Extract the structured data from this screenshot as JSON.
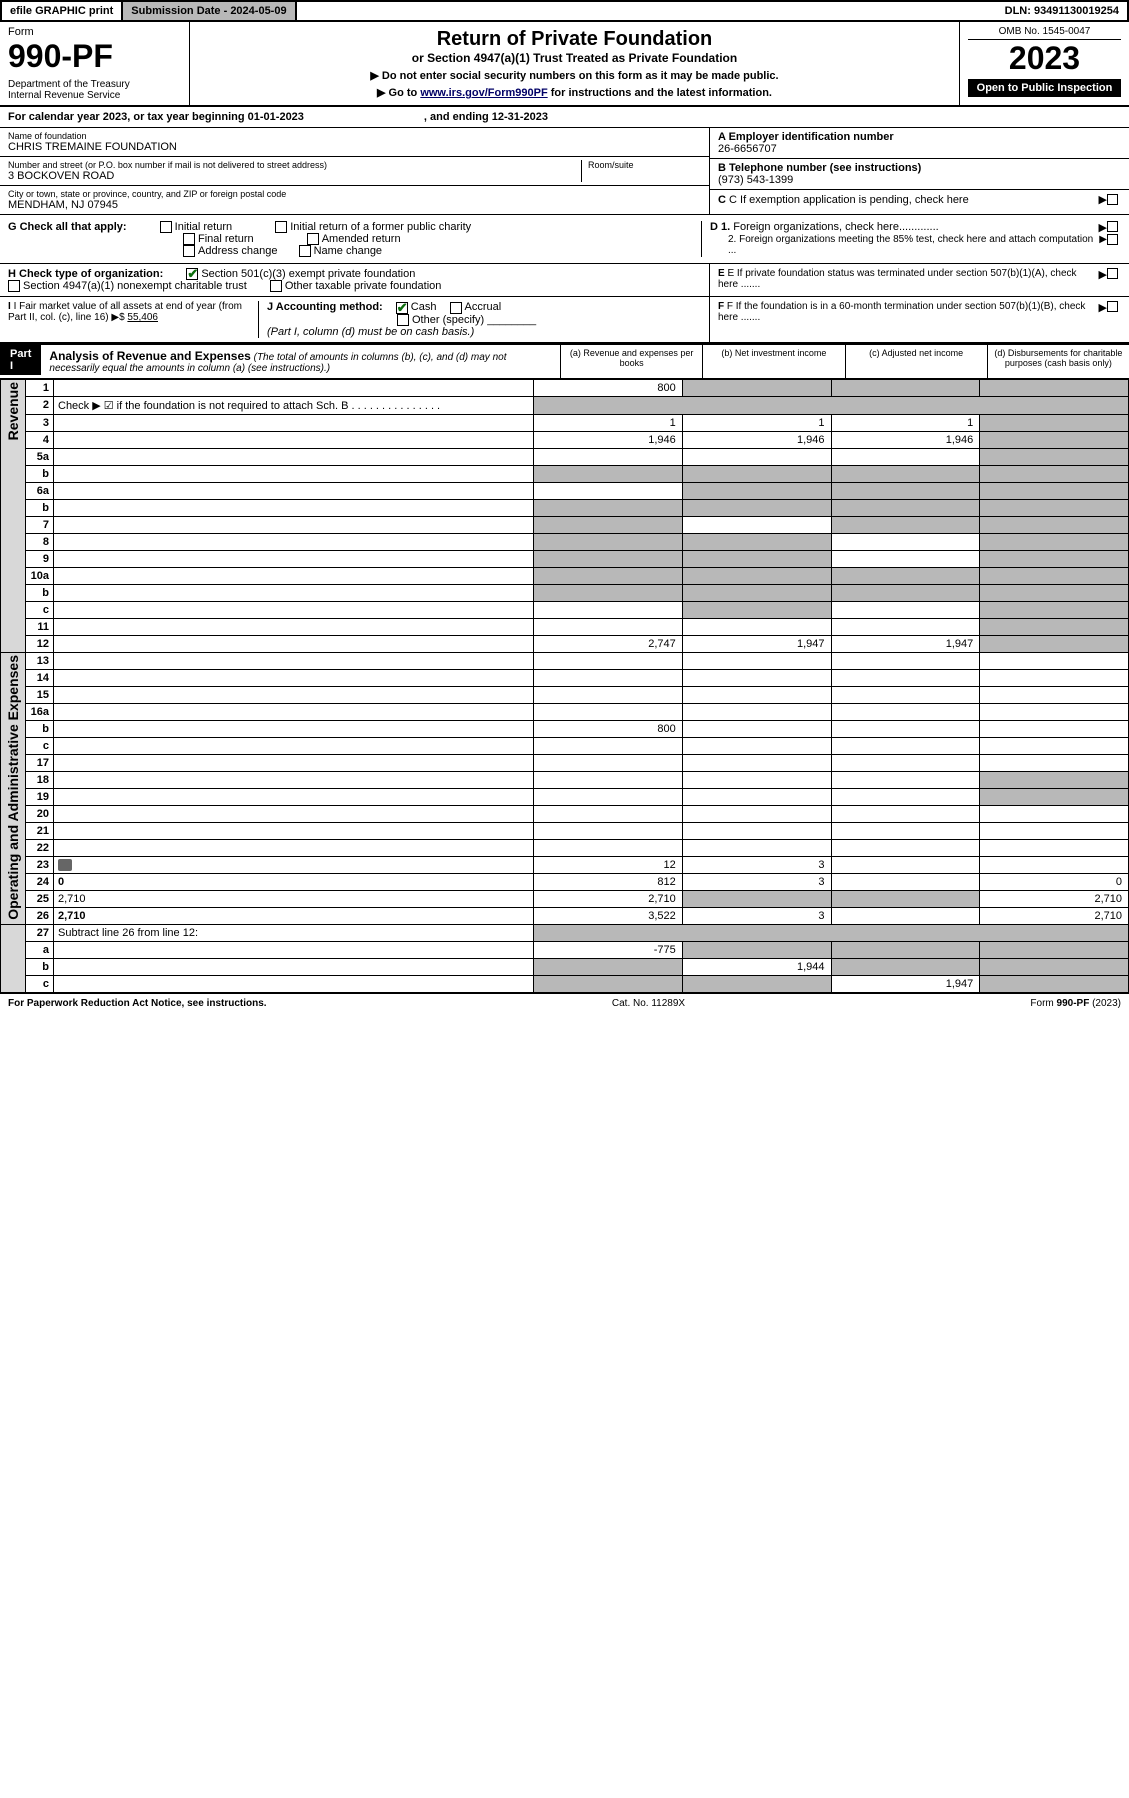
{
  "topbar": {
    "efile": "efile GRAPHIC print",
    "sub_date_label": "Submission Date - 2024-05-09",
    "dln": "DLN: 93491130019254"
  },
  "header": {
    "form_label": "Form",
    "form_num": "990-PF",
    "dept": "Department of the Treasury\nInternal Revenue Service",
    "title": "Return of Private Foundation",
    "subtitle": "or Section 4947(a)(1) Trust Treated as Private Foundation",
    "instr1": "▶ Do not enter social security numbers on this form as it may be made public.",
    "instr2_pre": "▶ Go to ",
    "instr2_link": "www.irs.gov/Form990PF",
    "instr2_post": " for instructions and the latest information.",
    "omb": "OMB No. 1545-0047",
    "year": "2023",
    "open": "Open to Public Inspection"
  },
  "cal_year": {
    "text": "For calendar year 2023, or tax year beginning 01-01-2023",
    "ending": ", and ending 12-31-2023"
  },
  "entity": {
    "name_lbl": "Name of foundation",
    "name": "CHRIS TREMAINE FOUNDATION",
    "addr_lbl": "Number and street (or P.O. box number if mail is not delivered to street address)",
    "addr": "3 BOCKOVEN ROAD",
    "room_lbl": "Room/suite",
    "city_lbl": "City or town, state or province, country, and ZIP or foreign postal code",
    "city": "MENDHAM, NJ  07945",
    "a_lbl": "A Employer identification number",
    "a_val": "26-6656707",
    "b_lbl": "B Telephone number (see instructions)",
    "b_val": "(973) 543-1399",
    "c_lbl": "C If exemption application is pending, check here",
    "d1_lbl": "D 1. Foreign organizations, check here.............",
    "d2_lbl": "2. Foreign organizations meeting the 85% test, check here and attach computation ...",
    "e_lbl": "E  If private foundation status was terminated under section 507(b)(1)(A), check here .......",
    "f_lbl": "F  If the foundation is in a 60-month termination under section 507(b)(1)(B), check here ......."
  },
  "g": {
    "label": "G Check all that apply:",
    "opts": [
      "Initial return",
      "Final return",
      "Address change",
      "Initial return of a former public charity",
      "Amended return",
      "Name change"
    ]
  },
  "h": {
    "label": "H Check type of organization:",
    "o1": "Section 501(c)(3) exempt private foundation",
    "o2": "Section 4947(a)(1) nonexempt charitable trust",
    "o3": "Other taxable private foundation"
  },
  "i": {
    "label": "I Fair market value of all assets at end of year (from Part II, col. (c), line 16)",
    "val": "55,406"
  },
  "j": {
    "label": "J Accounting method:",
    "o1": "Cash",
    "o2": "Accrual",
    "o3": "Other (specify)",
    "note": "(Part I, column (d) must be on cash basis.)"
  },
  "part1": {
    "label": "Part I",
    "title": "Analysis of Revenue and Expenses",
    "note": "(The total of amounts in columns (b), (c), and (d) may not necessarily equal the amounts in column (a) (see instructions).)",
    "col_a": "(a)   Revenue and expenses per books",
    "col_b": "(b)   Net investment income",
    "col_c": "(c)   Adjusted net income",
    "col_d": "(d)  Disbursements for charitable purposes (cash basis only)"
  },
  "side_rev": "Revenue",
  "side_exp": "Operating and Administrative Expenses",
  "rows": [
    {
      "n": "1",
      "d": "",
      "a": "800",
      "b": "",
      "c": "",
      "grey": [
        "b",
        "c",
        "d"
      ]
    },
    {
      "n": "2",
      "d": "Check ▶ ☑ if the foundation is not required to attach Sch. B    .   .   .   .   .   .   .   .   .   .   .   .   .   .   .",
      "empty": true
    },
    {
      "n": "3",
      "d": "",
      "a": "1",
      "b": "1",
      "c": "1",
      "grey": [
        "d"
      ]
    },
    {
      "n": "4",
      "d": "",
      "a": "1,946",
      "b": "1,946",
      "c": "1,946",
      "grey": [
        "d"
      ]
    },
    {
      "n": "5a",
      "d": "",
      "a": "",
      "b": "",
      "c": "",
      "grey": [
        "d"
      ]
    },
    {
      "n": "b",
      "d": "",
      "a": "",
      "b": "",
      "c": "",
      "grey": [
        "a",
        "b",
        "c",
        "d"
      ]
    },
    {
      "n": "6a",
      "d": "",
      "a": "",
      "b": "",
      "c": "",
      "grey": [
        "b",
        "c",
        "d"
      ]
    },
    {
      "n": "b",
      "d": "",
      "a": "",
      "b": "",
      "c": "",
      "grey": [
        "a",
        "b",
        "c",
        "d"
      ]
    },
    {
      "n": "7",
      "d": "",
      "a": "",
      "b": "",
      "c": "",
      "grey": [
        "a",
        "c",
        "d"
      ]
    },
    {
      "n": "8",
      "d": "",
      "a": "",
      "b": "",
      "c": "",
      "grey": [
        "a",
        "b",
        "d"
      ]
    },
    {
      "n": "9",
      "d": "",
      "a": "",
      "b": "",
      "c": "",
      "grey": [
        "a",
        "b",
        "d"
      ]
    },
    {
      "n": "10a",
      "d": "",
      "a": "",
      "b": "",
      "c": "",
      "grey": [
        "a",
        "b",
        "c",
        "d"
      ]
    },
    {
      "n": "b",
      "d": "",
      "a": "",
      "b": "",
      "c": "",
      "grey": [
        "a",
        "b",
        "c",
        "d"
      ]
    },
    {
      "n": "c",
      "d": "",
      "a": "",
      "b": "",
      "c": "",
      "grey": [
        "b",
        "d"
      ]
    },
    {
      "n": "11",
      "d": "",
      "a": "",
      "b": "",
      "c": "",
      "grey": [
        "d"
      ]
    },
    {
      "n": "12",
      "d": "",
      "a": "2,747",
      "b": "1,947",
      "c": "1,947",
      "grey": [
        "d"
      ],
      "bold": true
    }
  ],
  "exp_rows": [
    {
      "n": "13",
      "d": "",
      "a": "",
      "b": "",
      "c": ""
    },
    {
      "n": "14",
      "d": "",
      "a": "",
      "b": "",
      "c": ""
    },
    {
      "n": "15",
      "d": "",
      "a": "",
      "b": "",
      "c": ""
    },
    {
      "n": "16a",
      "d": "",
      "a": "",
      "b": "",
      "c": ""
    },
    {
      "n": "b",
      "d": "",
      "a": "800",
      "b": "",
      "c": ""
    },
    {
      "n": "c",
      "d": "",
      "a": "",
      "b": "",
      "c": ""
    },
    {
      "n": "17",
      "d": "",
      "a": "",
      "b": "",
      "c": ""
    },
    {
      "n": "18",
      "d": "",
      "a": "",
      "b": "",
      "c": "",
      "grey": [
        "d"
      ]
    },
    {
      "n": "19",
      "d": "",
      "a": "",
      "b": "",
      "c": "",
      "grey": [
        "d"
      ]
    },
    {
      "n": "20",
      "d": "",
      "a": "",
      "b": "",
      "c": ""
    },
    {
      "n": "21",
      "d": "",
      "a": "",
      "b": "",
      "c": ""
    },
    {
      "n": "22",
      "d": "",
      "a": "",
      "b": "",
      "c": ""
    },
    {
      "n": "23",
      "d": "",
      "a": "12",
      "b": "3",
      "c": "",
      "attach": true
    },
    {
      "n": "24",
      "d": "0",
      "a": "812",
      "b": "3",
      "c": "",
      "bold": true
    },
    {
      "n": "25",
      "d": "2,710",
      "a": "2,710",
      "b": "",
      "c": "",
      "grey": [
        "b",
        "c"
      ]
    },
    {
      "n": "26",
      "d": "2,710",
      "a": "3,522",
      "b": "3",
      "c": "",
      "bold": true
    }
  ],
  "net_rows": [
    {
      "n": "27",
      "d": "Subtract line 26 from line 12:",
      "empty": true
    },
    {
      "n": "a",
      "d": "",
      "a": "-775",
      "b": "",
      "c": "",
      "grey": [
        "b",
        "c",
        "d"
      ],
      "bold": true
    },
    {
      "n": "b",
      "d": "",
      "a": "",
      "b": "1,944",
      "c": "",
      "grey": [
        "a",
        "c",
        "d"
      ],
      "bold": true
    },
    {
      "n": "c",
      "d": "",
      "a": "",
      "b": "",
      "c": "1,947",
      "grey": [
        "a",
        "b",
        "d"
      ],
      "bold": true
    }
  ],
  "footer": {
    "left": "For Paperwork Reduction Act Notice, see instructions.",
    "mid": "Cat. No. 11289X",
    "right": "Form 990-PF (2023)"
  }
}
